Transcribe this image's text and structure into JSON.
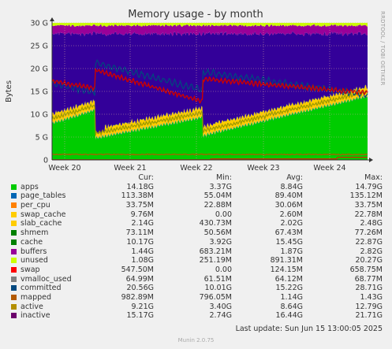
{
  "chart_data": {
    "type": "area",
    "title": "Memory usage - by month",
    "ylabel": "Bytes",
    "side_label": "RRDTOOL / TOBI OETIKER",
    "ylim": [
      0,
      30
    ],
    "y_unit": "G",
    "y_ticks": [
      "0",
      "5 G",
      "10 G",
      "15 G",
      "20 G",
      "25 G",
      "30 G"
    ],
    "x_ticks": [
      "Week 20",
      "Week 21",
      "Week 22",
      "Week 23",
      "Week 24"
    ],
    "x_range": [
      "2025-05-10",
      "2025-06-15"
    ],
    "stacked_series": [
      {
        "name": "apps",
        "color": "#00cc00",
        "start": 8.0,
        "drop": 4.5,
        "recover": 5.0,
        "drop2": 5.2,
        "end": 13.8
      },
      {
        "name": "page_tables",
        "color": "#0066b3",
        "value": 0.11
      },
      {
        "name": "per_cpu",
        "color": "#ff8000",
        "value": 0.03
      },
      {
        "name": "swap_cache",
        "color": "#ffcc00",
        "value": 0.01
      },
      {
        "name": "slab_cache",
        "color": "#ffcc00",
        "value": 2.1
      },
      {
        "name": "shmem",
        "color": "#00cc00",
        "value": 0.07
      },
      {
        "name": "cache",
        "color": "#0066b3",
        "comment": "fills remainder up to buffers"
      },
      {
        "name": "buffers",
        "color": "#990099",
        "value": 1.6
      },
      {
        "name": "unused",
        "color": "#ccff00",
        "value": 1.1
      }
    ],
    "line_series": [
      {
        "name": "swap",
        "color": "#ff0000"
      },
      {
        "name": "committed",
        "color": "#004d80"
      },
      {
        "name": "mapped",
        "color": "#b35a00"
      },
      {
        "name": "active",
        "color": "#999900"
      },
      {
        "name": "inactive",
        "color": "#cc0000"
      }
    ]
  },
  "legend": {
    "headers": [
      "Cur:",
      "Min:",
      "Avg:",
      "Max:"
    ],
    "rows": [
      {
        "name": "apps",
        "color": "#00cc00",
        "cur": "14.18G",
        "min": "3.37G",
        "avg": "8.84G",
        "max": "14.79G"
      },
      {
        "name": "page_tables",
        "color": "#0066b3",
        "cur": "113.38M",
        "min": "55.04M",
        "avg": "89.40M",
        "max": "135.12M"
      },
      {
        "name": "per_cpu",
        "color": "#ff8000",
        "cur": "33.75M",
        "min": "22.88M",
        "avg": "30.06M",
        "max": "33.75M"
      },
      {
        "name": "swap_cache",
        "color": "#ffcc00",
        "cur": "9.76M",
        "min": "0.00",
        "avg": "2.60M",
        "max": "22.78M"
      },
      {
        "name": "slab_cache",
        "color": "#ffcc00",
        "cur": "2.14G",
        "min": "430.73M",
        "avg": "2.02G",
        "max": "2.48G"
      },
      {
        "name": "shmem",
        "color": "#008000",
        "cur": "73.11M",
        "min": "50.56M",
        "avg": "67.43M",
        "max": "77.26M"
      },
      {
        "name": "cache",
        "color": "#008000",
        "cur": "10.17G",
        "min": "3.92G",
        "avg": "15.45G",
        "max": "22.87G"
      },
      {
        "name": "buffers",
        "color": "#990099",
        "cur": "1.44G",
        "min": "683.21M",
        "avg": "1.87G",
        "max": "2.82G"
      },
      {
        "name": "unused",
        "color": "#ccff00",
        "cur": "1.08G",
        "min": "251.19M",
        "avg": "891.31M",
        "max": "20.27G"
      },
      {
        "name": "swap",
        "color": "#ff0000",
        "cur": "547.50M",
        "min": "0.00",
        "avg": "124.15M",
        "max": "658.75M"
      },
      {
        "name": "vmalloc_used",
        "color": "#808080",
        "cur": "64.99M",
        "min": "61.51M",
        "avg": "64.12M",
        "max": "68.77M"
      },
      {
        "name": "committed",
        "color": "#00487f",
        "cur": "20.56G",
        "min": "10.01G",
        "avg": "15.22G",
        "max": "28.71G"
      },
      {
        "name": "mapped",
        "color": "#b35a00",
        "cur": "982.89M",
        "min": "796.05M",
        "avg": "1.14G",
        "max": "1.43G"
      },
      {
        "name": "active",
        "color": "#b38f00",
        "cur": "9.21G",
        "min": "3.40G",
        "avg": "8.64G",
        "max": "12.79G"
      },
      {
        "name": "inactive",
        "color": "#6b006b",
        "cur": "15.17G",
        "min": "2.74G",
        "avg": "16.44G",
        "max": "21.71G"
      }
    ]
  },
  "last_update": "Last update:  Sun Jun 15 13:00:05 2025",
  "footer": "Munin 2.0.75"
}
